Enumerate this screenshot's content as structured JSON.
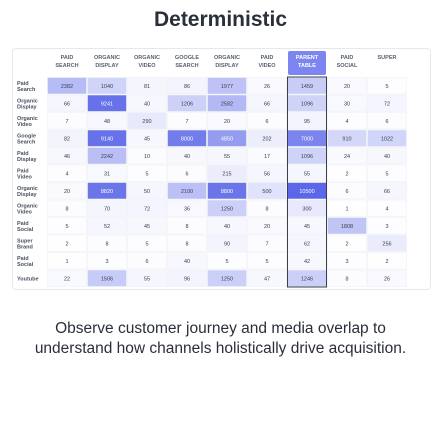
{
  "page": {
    "title": "Deterministic",
    "caption": "Observe customer journey and media overlap to understand how channels holistically drive acquisition."
  },
  "chart_data": {
    "type": "heatmap",
    "title": "",
    "columns": [
      "Paid Search",
      "Organic Display",
      "Organic Video",
      "Google Search",
      "Organic Display",
      "Paid Video",
      "Parent Table",
      "Paid Social",
      "Super"
    ],
    "rows": [
      "Paid Search",
      "Organic Display",
      "Organic Video",
      "Google Search",
      "Paid Display",
      "Paid Video",
      "Organic Display",
      "Organic Video",
      "Paid Social",
      "Super Brand",
      "Paid Social",
      "Youtube"
    ],
    "values": [
      [
        2382,
        1040,
        81,
        86,
        1977,
        26,
        1459,
        20,
        5
      ],
      [
        66,
        9241,
        40,
        1206,
        2582,
        66,
        1096,
        30,
        72
      ],
      [
        7,
        48,
        290,
        7,
        20,
        6,
        95,
        4,
        6
      ],
      [
        82,
        9140,
        45,
        8000,
        4850,
        202,
        7000,
        910,
        1022
      ],
      [
        46,
        2242,
        10,
        40,
        55,
        17,
        1096,
        24,
        40
      ],
      [
        4,
        31,
        5,
        6,
        215,
        56,
        55,
        2,
        5
      ],
      [
        20,
        8820,
        50,
        2100,
        8800,
        500,
        10500,
        6,
        66
      ],
      [
        8,
        70,
        72,
        36,
        1250,
        8,
        300,
        1,
        4
      ],
      [
        5,
        52,
        45,
        8,
        40,
        20,
        45,
        1808,
        3
      ],
      [
        2,
        8,
        5,
        8,
        90,
        7,
        62,
        2,
        256
      ],
      [
        1,
        3,
        6,
        40,
        5,
        5,
        42,
        3,
        2
      ],
      [
        22,
        1506,
        55,
        96,
        1250,
        47,
        1246,
        8,
        26
      ]
    ],
    "color_low": "#ffffff",
    "color_high": "#5b67e8",
    "highlight_column": 6,
    "highlight_color": "#7c85f0"
  }
}
